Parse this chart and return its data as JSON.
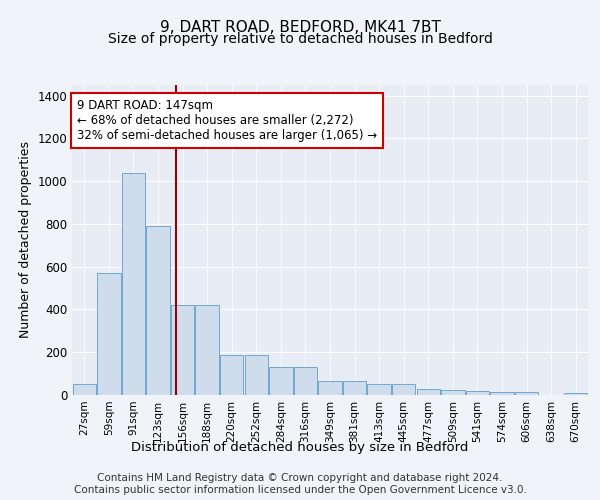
{
  "title1": "9, DART ROAD, BEDFORD, MK41 7BT",
  "title2": "Size of property relative to detached houses in Bedford",
  "xlabel": "Distribution of detached houses by size in Bedford",
  "ylabel": "Number of detached properties",
  "categories": [
    "27sqm",
    "59sqm",
    "91sqm",
    "123sqm",
    "156sqm",
    "188sqm",
    "220sqm",
    "252sqm",
    "284sqm",
    "316sqm",
    "349sqm",
    "381sqm",
    "413sqm",
    "445sqm",
    "477sqm",
    "509sqm",
    "541sqm",
    "574sqm",
    "606sqm",
    "638sqm",
    "670sqm"
  ],
  "values": [
    50,
    570,
    1040,
    790,
    420,
    420,
    185,
    185,
    130,
    130,
    65,
    65,
    50,
    50,
    28,
    25,
    20,
    15,
    12,
    0,
    10
  ],
  "bar_color": "#cfdceb",
  "bar_edge_color": "#6fa8d0",
  "red_line_x": 3.75,
  "annotation_text": "9 DART ROAD: 147sqm\n← 68% of detached houses are smaller (2,272)\n32% of semi-detached houses are larger (1,065) →",
  "ylim": [
    0,
    1450
  ],
  "yticks": [
    0,
    200,
    400,
    600,
    800,
    1000,
    1200,
    1400
  ],
  "background_color": "#f0f3f8",
  "plot_bg_color": "#e8edf5",
  "grid_color": "#ffffff",
  "footer_text": "Contains HM Land Registry data © Crown copyright and database right 2024.\nContains public sector information licensed under the Open Government Licence v3.0.",
  "title1_fontsize": 11,
  "title2_fontsize": 10,
  "annotation_fontsize": 8.5,
  "footer_fontsize": 7.5,
  "ylabel_fontsize": 9,
  "xlabel_fontsize": 9.5
}
